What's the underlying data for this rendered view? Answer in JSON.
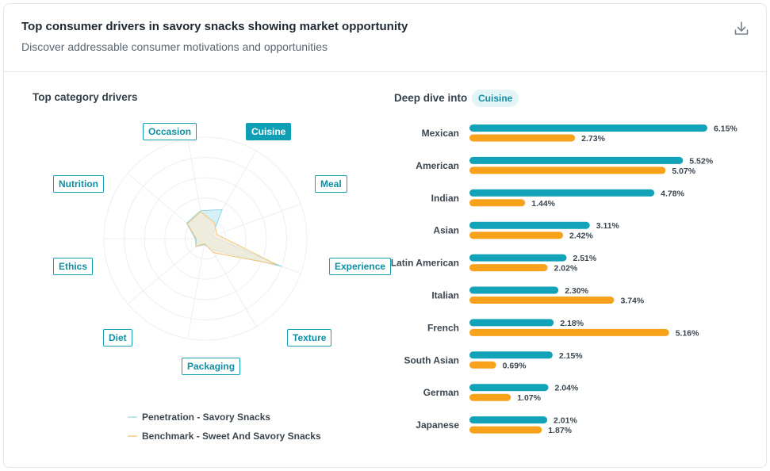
{
  "header": {
    "title": "Top consumer drivers in savory snacks showing market opportunity",
    "subtitle": "Discover addressable consumer motivations and opportunities"
  },
  "left_panel": {
    "title": "Top category drivers"
  },
  "right_panel": {
    "title": "Deep dive into",
    "selected": "Cuisine"
  },
  "colors": {
    "penetration": "#12a3b8",
    "benchmark": "#f8a21b",
    "penetration_fill": "#cfeff4",
    "benchmark_fill": "#f6ead4"
  },
  "chart_data": [
    {
      "type": "radar",
      "axes": [
        "Cuisine",
        "Meal",
        "Experience",
        "Texture",
        "Packaging",
        "Diet",
        "Ethics",
        "Nutrition",
        "Occasion"
      ],
      "selected_axis": "Cuisine",
      "series": [
        {
          "name": "Penetration - Savory Snacks",
          "values": [
            0.33,
            0.07,
            0.8,
            0.12,
            0.06,
            0.12,
            0.1,
            0.24,
            0.28
          ]
        },
        {
          "name": "Benchmark - Sweet And Savory Snacks",
          "values": [
            0.18,
            0.12,
            0.75,
            0.16,
            0.05,
            0.12,
            0.09,
            0.23,
            0.27
          ]
        }
      ],
      "legend": "bottom"
    },
    {
      "type": "bar",
      "orientation": "horizontal",
      "categories": [
        "Mexican",
        "American",
        "Indian",
        "Asian",
        "Latin American",
        "Italian",
        "French",
        "South Asian",
        "German",
        "Japanese"
      ],
      "series": [
        {
          "name": "Penetration - Savory Snacks",
          "values": [
            6.15,
            5.52,
            4.78,
            3.11,
            2.51,
            2.3,
            2.18,
            2.15,
            2.04,
            2.01
          ],
          "labels": [
            "6.15%",
            "5.52%",
            "4.78%",
            "3.11%",
            "2.51%",
            "2.30%",
            "2.18%",
            "2.15%",
            "2.04%",
            "2.01%"
          ]
        },
        {
          "name": "Benchmark - Sweet And Savory Snacks",
          "values": [
            2.73,
            5.07,
            1.44,
            2.42,
            2.02,
            3.74,
            5.16,
            0.69,
            1.07,
            1.87
          ],
          "labels": [
            "2.73%",
            "5.07%",
            "1.44%",
            "2.42%",
            "2.02%",
            "3.74%",
            "5.16%",
            "0.69%",
            "1.07%",
            "1.87%"
          ]
        }
      ],
      "xlim": [
        0,
        6.15
      ]
    }
  ]
}
